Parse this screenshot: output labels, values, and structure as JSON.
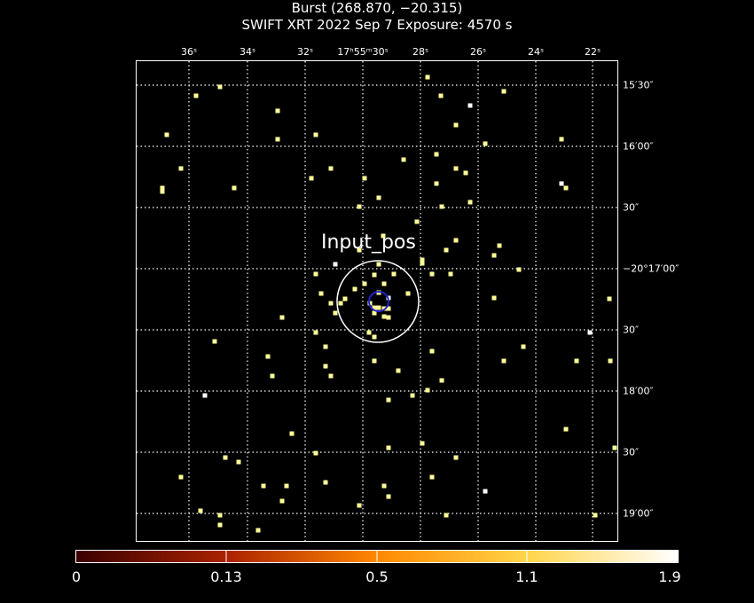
{
  "header": {
    "title": "Burst (268.870, −20.315)",
    "subtitle": "SWIFT XRT   2022 Sep  7    Exposure: 4570 s"
  },
  "image": {
    "region_label": "Input_pos",
    "ra_ticks": [
      "36ˢ",
      "34ˢ",
      "32ˢ",
      "17ʰ55ᵐ30ˢ",
      "28ˢ",
      "26ˢ",
      "24ˢ",
      "22ˢ"
    ],
    "dec_ticks": [
      "15′30″",
      "16′00″",
      "30″",
      "−20°17′00″",
      "30″",
      "18′00″",
      "30″",
      "19′00″"
    ],
    "colors": {
      "frame": "#ffffff",
      "grid": "#ffffff",
      "source": "#ffff99",
      "bright": "#ffffff",
      "error_circle": "#2222cc"
    }
  },
  "colorbar": {
    "labels": [
      "0",
      "0.13",
      "0.5",
      "1.1",
      "1.9"
    ],
    "colors": [
      "#3a0000",
      "#aa2200",
      "#ff8800",
      "#ffd54a",
      "#ffffff"
    ]
  }
}
